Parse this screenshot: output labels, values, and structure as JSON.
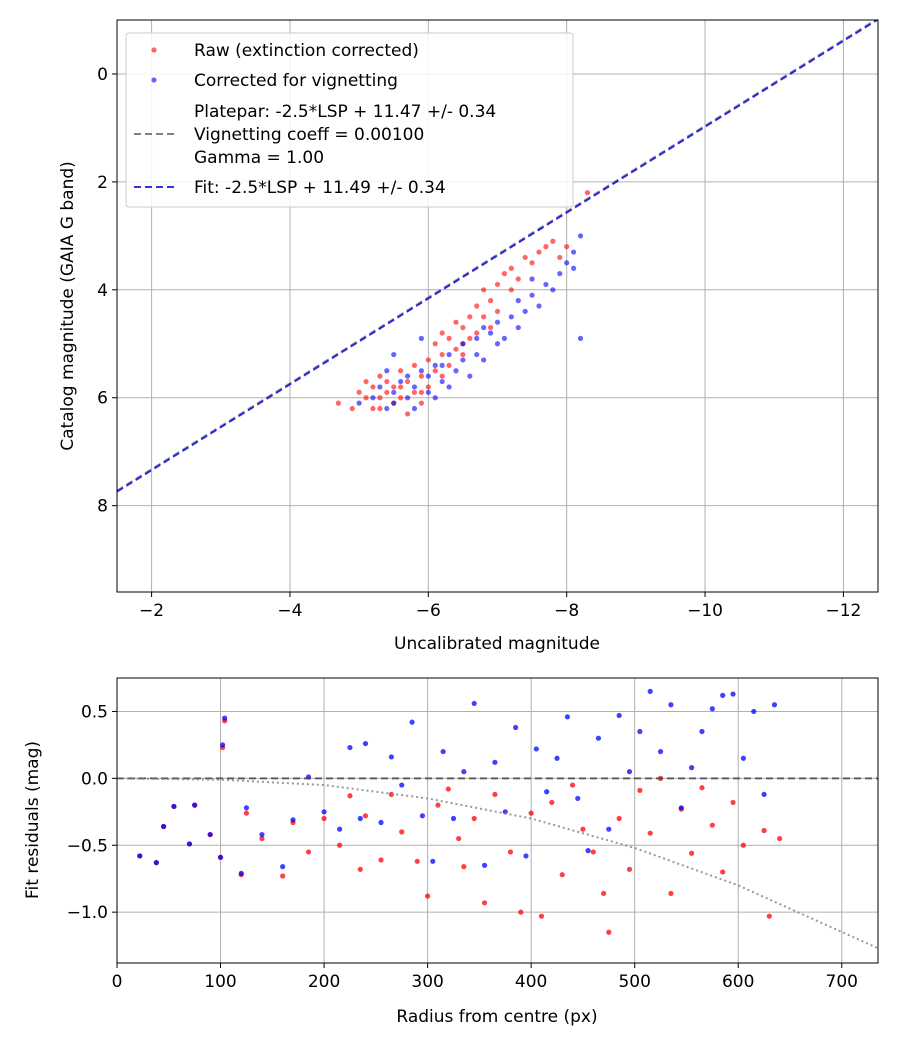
{
  "chart_data": [
    {
      "type": "scatter",
      "xlabel": "Uncalibrated magnitude",
      "ylabel": "Catalog magnitude (GAIA G band)",
      "xlim": [
        -1.5,
        -12.5
      ],
      "ylim": [
        9.6,
        -1.0
      ],
      "x_inverted": true,
      "y_inverted": true,
      "x_ticks": [
        -2,
        -4,
        -6,
        -8,
        -10,
        -12
      ],
      "x_tick_labels": [
        "−2",
        "−4",
        "−6",
        "−8",
        "−10",
        "−12"
      ],
      "y_ticks": [
        0,
        2,
        4,
        6,
        8
      ],
      "y_tick_labels": [
        "0",
        "2",
        "4",
        "6",
        "8"
      ],
      "grid": true,
      "legend_position": "top-left",
      "series": [
        {
          "name": "Raw (extinction corrected)",
          "kind": "points",
          "color": "#ff0000",
          "points": [
            [
              -4.7,
              6.1
            ],
            [
              -4.9,
              6.2
            ],
            [
              -5.0,
              5.9
            ],
            [
              -5.1,
              6.0
            ],
            [
              -5.1,
              5.7
            ],
            [
              -5.2,
              5.8
            ],
            [
              -5.2,
              6.2
            ],
            [
              -5.3,
              5.6
            ],
            [
              -5.3,
              6.0
            ],
            [
              -5.4,
              5.9
            ],
            [
              -5.4,
              5.7
            ],
            [
              -5.5,
              6.1
            ],
            [
              -5.5,
              5.8
            ],
            [
              -5.6,
              5.5
            ],
            [
              -5.6,
              6.0
            ],
            [
              -5.7,
              5.7
            ],
            [
              -5.7,
              6.3
            ],
            [
              -5.8,
              5.4
            ],
            [
              -5.8,
              5.9
            ],
            [
              -5.9,
              5.6
            ],
            [
              -5.9,
              6.1
            ],
            [
              -6.0,
              5.3
            ],
            [
              -6.0,
              5.8
            ],
            [
              -6.1,
              5.5
            ],
            [
              -6.1,
              5.0
            ],
            [
              -6.2,
              5.2
            ],
            [
              -6.2,
              4.8
            ],
            [
              -6.3,
              4.9
            ],
            [
              -6.3,
              5.4
            ],
            [
              -6.4,
              4.6
            ],
            [
              -6.4,
              5.1
            ],
            [
              -6.5,
              4.7
            ],
            [
              -6.5,
              5.2
            ],
            [
              -6.6,
              4.5
            ],
            [
              -6.6,
              4.9
            ],
            [
              -6.7,
              4.3
            ],
            [
              -6.7,
              4.8
            ],
            [
              -6.8,
              4.5
            ],
            [
              -6.8,
              4.0
            ],
            [
              -6.9,
              4.2
            ],
            [
              -7.0,
              3.9
            ],
            [
              -7.0,
              4.4
            ],
            [
              -7.1,
              3.7
            ],
            [
              -7.2,
              3.6
            ],
            [
              -7.2,
              4.0
            ],
            [
              -7.3,
              3.8
            ],
            [
              -7.4,
              3.4
            ],
            [
              -7.5,
              3.5
            ],
            [
              -7.6,
              3.3
            ],
            [
              -7.7,
              3.2
            ],
            [
              -7.8,
              3.1
            ],
            [
              -7.9,
              3.4
            ],
            [
              -8.0,
              3.2
            ],
            [
              -8.3,
              2.2
            ],
            [
              -5.3,
              6.2
            ],
            [
              -5.6,
              5.8
            ],
            [
              -5.9,
              5.9
            ],
            [
              -6.2,
              5.6
            ],
            [
              -6.5,
              5.0
            ],
            [
              -6.9,
              4.7
            ]
          ]
        },
        {
          "name": "Corrected for vignetting",
          "kind": "points",
          "color": "#0000ff",
          "points": [
            [
              -5.0,
              6.1
            ],
            [
              -5.2,
              6.0
            ],
            [
              -5.3,
              5.8
            ],
            [
              -5.4,
              6.2
            ],
            [
              -5.5,
              5.9
            ],
            [
              -5.5,
              6.1
            ],
            [
              -5.6,
              5.7
            ],
            [
              -5.7,
              6.0
            ],
            [
              -5.7,
              5.6
            ],
            [
              -5.8,
              5.8
            ],
            [
              -5.8,
              6.2
            ],
            [
              -5.9,
              5.5
            ],
            [
              -6.0,
              5.9
            ],
            [
              -6.0,
              5.6
            ],
            [
              -6.1,
              6.0
            ],
            [
              -6.1,
              5.4
            ],
            [
              -6.2,
              5.7
            ],
            [
              -6.3,
              5.2
            ],
            [
              -6.3,
              5.8
            ],
            [
              -6.4,
              5.5
            ],
            [
              -6.5,
              5.3
            ],
            [
              -6.5,
              5.0
            ],
            [
              -6.6,
              5.6
            ],
            [
              -6.7,
              5.2
            ],
            [
              -6.7,
              4.9
            ],
            [
              -6.8,
              5.3
            ],
            [
              -6.9,
              4.8
            ],
            [
              -7.0,
              5.0
            ],
            [
              -7.0,
              4.6
            ],
            [
              -7.1,
              4.9
            ],
            [
              -7.2,
              4.5
            ],
            [
              -7.3,
              4.7
            ],
            [
              -7.3,
              4.2
            ],
            [
              -7.4,
              4.4
            ],
            [
              -7.5,
              4.1
            ],
            [
              -7.6,
              4.3
            ],
            [
              -7.7,
              3.9
            ],
            [
              -7.8,
              4.0
            ],
            [
              -7.9,
              3.7
            ],
            [
              -8.0,
              3.5
            ],
            [
              -8.1,
              3.3
            ],
            [
              -8.2,
              4.9
            ],
            [
              -8.1,
              3.6
            ],
            [
              -5.5,
              5.2
            ],
            [
              -5.9,
              4.9
            ],
            [
              -6.2,
              5.4
            ],
            [
              -5.4,
              5.5
            ],
            [
              -6.8,
              4.7
            ],
            [
              -7.5,
              3.8
            ],
            [
              -8.2,
              3.0
            ]
          ]
        },
        {
          "name": "Platepar: -2.5*LSP + 11.47 +/- 0.34\nVignetting coeff = 0.00100\nGamma = 1.00",
          "kind": "line",
          "color": "#808080",
          "dash": "dashed",
          "x": [
            -1.5,
            -12.5
          ],
          "y": [
            7.72,
            -1.03
          ]
        },
        {
          "name": "Fit: -2.5*LSP + 11.49 +/- 0.34",
          "kind": "line",
          "color": "#0000dd",
          "dash": "dashed",
          "x": [
            -1.5,
            -12.5
          ],
          "y": [
            7.74,
            -1.01
          ]
        }
      ],
      "legend_labels": [
        "Raw (extinction corrected)",
        "Corrected for vignetting",
        "Platepar: -2.5*LSP + 11.47 +/- 0.34",
        "Vignetting coeff = 0.00100",
        "Gamma = 1.00",
        "Fit: -2.5*LSP + 11.49 +/- 0.34"
      ]
    },
    {
      "type": "scatter",
      "xlabel": "Radius from centre (px)",
      "ylabel": "Fit residuals (mag)",
      "xlim": [
        0,
        735
      ],
      "ylim": [
        -1.38,
        0.75
      ],
      "x_ticks": [
        0,
        100,
        200,
        300,
        400,
        500,
        600,
        700
      ],
      "x_tick_labels": [
        "0",
        "100",
        "200",
        "300",
        "400",
        "500",
        "600",
        "700"
      ],
      "y_ticks": [
        0.5,
        0.0,
        -0.5,
        -1.0
      ],
      "y_tick_labels": [
        "0.5",
        "0.0",
        "−0.5",
        "−1.0"
      ],
      "grid": true,
      "series": [
        {
          "kind": "points",
          "color": "#ff0000",
          "points": [
            [
              22,
              -0.58
            ],
            [
              38,
              -0.63
            ],
            [
              45,
              -0.36
            ],
            [
              55,
              -0.21
            ],
            [
              70,
              -0.49
            ],
            [
              75,
              -0.2
            ],
            [
              90,
              -0.42
            ],
            [
              100,
              -0.59
            ],
            [
              102,
              0.23
            ],
            [
              104,
              0.43
            ],
            [
              120,
              -0.72
            ],
            [
              125,
              -0.26
            ],
            [
              140,
              -0.45
            ],
            [
              160,
              -0.73
            ],
            [
              170,
              -0.33
            ],
            [
              185,
              -0.55
            ],
            [
              200,
              -0.3
            ],
            [
              215,
              -0.5
            ],
            [
              225,
              -0.13
            ],
            [
              235,
              -0.68
            ],
            [
              240,
              -0.28
            ],
            [
              255,
              -0.61
            ],
            [
              265,
              -0.12
            ],
            [
              275,
              -0.4
            ],
            [
              290,
              -0.62
            ],
            [
              300,
              -0.88
            ],
            [
              310,
              -0.2
            ],
            [
              320,
              -0.08
            ],
            [
              330,
              -0.45
            ],
            [
              335,
              -0.66
            ],
            [
              345,
              -0.3
            ],
            [
              355,
              -0.93
            ],
            [
              365,
              -0.12
            ],
            [
              380,
              -0.55
            ],
            [
              390,
              -1.0
            ],
            [
              400,
              -0.26
            ],
            [
              410,
              -1.03
            ],
            [
              420,
              -0.18
            ],
            [
              430,
              -0.72
            ],
            [
              440,
              -0.05
            ],
            [
              450,
              -0.38
            ],
            [
              460,
              -0.55
            ],
            [
              470,
              -0.86
            ],
            [
              475,
              -1.15
            ],
            [
              485,
              -0.3
            ],
            [
              495,
              -0.68
            ],
            [
              505,
              -0.09
            ],
            [
              515,
              -0.41
            ],
            [
              525,
              0.0
            ],
            [
              535,
              -0.86
            ],
            [
              545,
              -0.23
            ],
            [
              555,
              -0.56
            ],
            [
              565,
              -0.07
            ],
            [
              575,
              -0.35
            ],
            [
              585,
              -0.7
            ],
            [
              595,
              -0.18
            ],
            [
              605,
              -0.5
            ],
            [
              625,
              -0.39
            ],
            [
              630,
              -1.03
            ],
            [
              640,
              -0.45
            ]
          ]
        },
        {
          "kind": "points",
          "color": "#0000ff",
          "points": [
            [
              22,
              -0.58
            ],
            [
              38,
              -0.63
            ],
            [
              45,
              -0.36
            ],
            [
              55,
              -0.21
            ],
            [
              70,
              -0.49
            ],
            [
              75,
              -0.2
            ],
            [
              90,
              -0.42
            ],
            [
              100,
              -0.59
            ],
            [
              102,
              0.25
            ],
            [
              104,
              0.45
            ],
            [
              120,
              -0.71
            ],
            [
              125,
              -0.22
            ],
            [
              140,
              -0.42
            ],
            [
              160,
              -0.66
            ],
            [
              170,
              -0.31
            ],
            [
              185,
              0.01
            ],
            [
              200,
              -0.25
            ],
            [
              215,
              -0.38
            ],
            [
              225,
              0.23
            ],
            [
              235,
              -0.3
            ],
            [
              240,
              0.26
            ],
            [
              255,
              -0.33
            ],
            [
              265,
              0.16
            ],
            [
              275,
              -0.05
            ],
            [
              285,
              0.42
            ],
            [
              295,
              -0.28
            ],
            [
              305,
              -0.62
            ],
            [
              315,
              0.2
            ],
            [
              325,
              -0.3
            ],
            [
              335,
              0.05
            ],
            [
              345,
              0.56
            ],
            [
              355,
              -0.65
            ],
            [
              365,
              0.12
            ],
            [
              375,
              -0.25
            ],
            [
              385,
              0.38
            ],
            [
              395,
              -0.58
            ],
            [
              405,
              0.22
            ],
            [
              415,
              -0.1
            ],
            [
              425,
              0.15
            ],
            [
              435,
              0.46
            ],
            [
              445,
              -0.15
            ],
            [
              455,
              -0.54
            ],
            [
              465,
              0.3
            ],
            [
              475,
              -0.38
            ],
            [
              485,
              0.47
            ],
            [
              495,
              0.05
            ],
            [
              505,
              0.35
            ],
            [
              515,
              0.65
            ],
            [
              525,
              0.2
            ],
            [
              535,
              0.55
            ],
            [
              545,
              -0.22
            ],
            [
              555,
              0.08
            ],
            [
              565,
              0.35
            ],
            [
              575,
              0.52
            ],
            [
              585,
              0.62
            ],
            [
              595,
              0.63
            ],
            [
              605,
              0.15
            ],
            [
              615,
              0.5
            ],
            [
              625,
              -0.12
            ],
            [
              635,
              0.55
            ]
          ]
        },
        {
          "kind": "line",
          "color": "#444444",
          "dash": "dashed",
          "x": [
            0,
            735
          ],
          "y": [
            0.0,
            0.0
          ]
        },
        {
          "kind": "line",
          "color": "#808080",
          "dash": "dotted",
          "x": [
            0,
            100,
            200,
            300,
            400,
            500,
            600,
            735
          ],
          "y": [
            0.0,
            -0.01,
            -0.05,
            -0.15,
            -0.3,
            -0.52,
            -0.8,
            -1.27
          ]
        }
      ]
    }
  ]
}
